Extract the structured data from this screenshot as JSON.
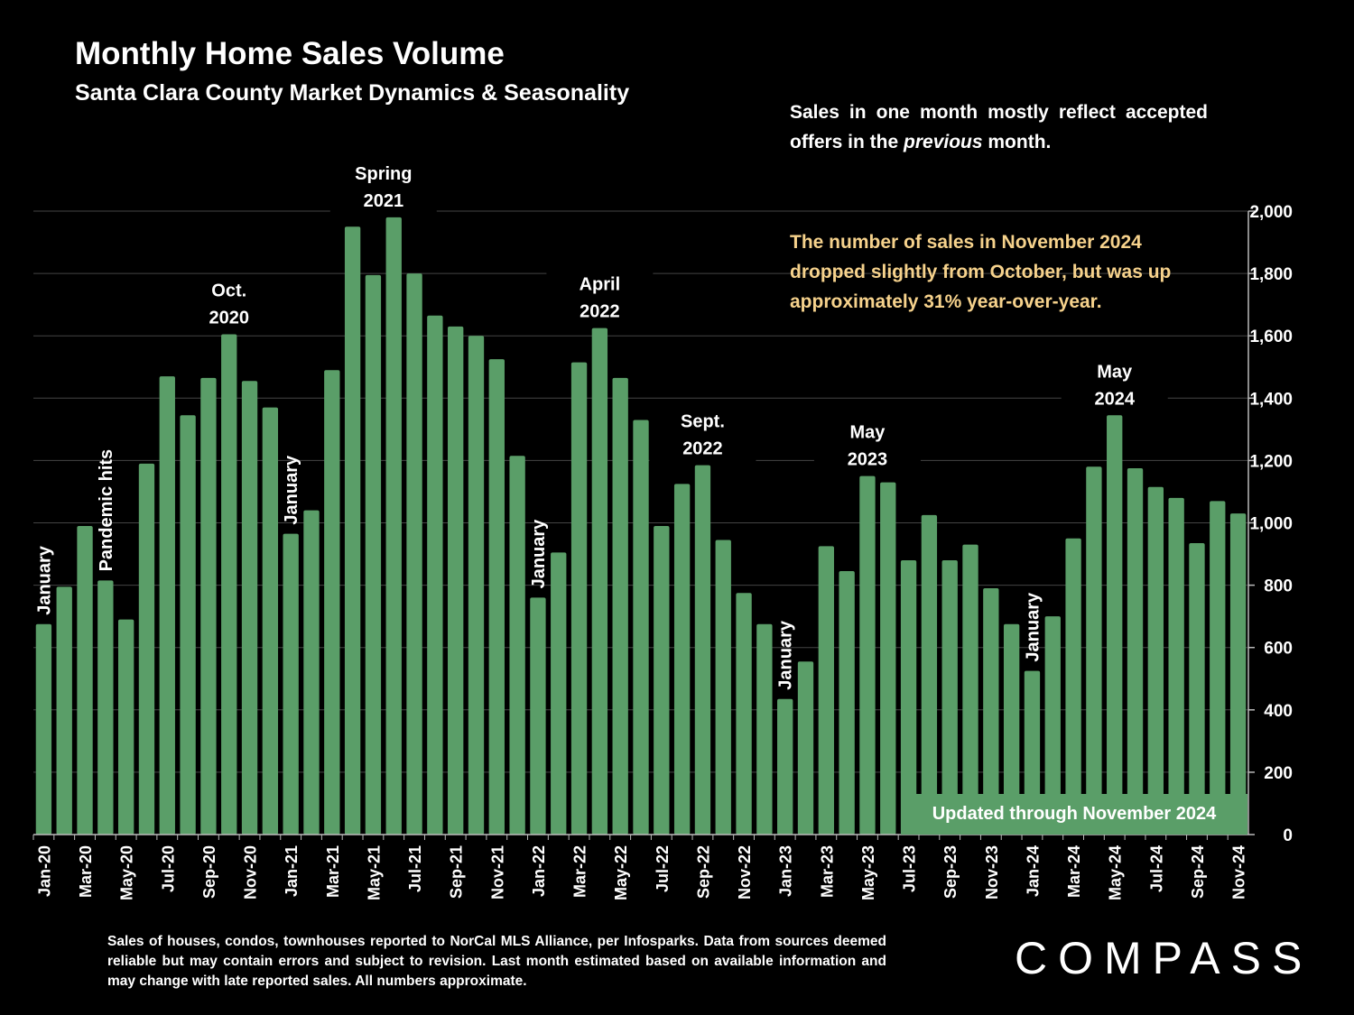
{
  "header": {
    "title": "Monthly Home Sales Volume",
    "subtitle": "Santa Clara County Market Dynamics & Seasonality"
  },
  "notes": {
    "reflect_prefix": "Sales in one month mostly reflect accepted offers in the ",
    "reflect_emphasis": "previous",
    "reflect_suffix": " month.",
    "highlight": "The number of sales in November 2024 dropped slightly from October, but was up approximately 31% year-over-year."
  },
  "update_badge": "Updated through November 2024",
  "footnote": "Sales of houses, condos, townhouses reported to NorCal MLS Alliance, per Infosparks. Data from sources deemed reliable but may contain errors and subject to revision. Last month estimated based on available information and may change with late reported sales. All numbers approximate.",
  "logo": "COMPASS",
  "colors": {
    "bar": "#5a9e68",
    "highlight_text": "#f6d28c",
    "background": "#000000",
    "grid": "#444444"
  },
  "chart_data": {
    "type": "bar",
    "title": "Monthly Home Sales Volume",
    "xlabel": "",
    "ylabel": "",
    "ylim": [
      0,
      2000
    ],
    "yticks": [
      0,
      200,
      400,
      600,
      800,
      1000,
      1200,
      1400,
      1600,
      1800,
      2000
    ],
    "ytick_labels": [
      "0",
      "200",
      "400",
      "600",
      "800",
      "1,000",
      "1,200",
      "1,400",
      "1,600",
      "1,800",
      "2,000"
    ],
    "y_axis_side": "right",
    "grid": true,
    "categories": [
      "Jan-20",
      "Feb-20",
      "Mar-20",
      "Apr-20",
      "May-20",
      "Jun-20",
      "Jul-20",
      "Aug-20",
      "Sep-20",
      "Oct-20",
      "Nov-20",
      "Dec-20",
      "Jan-21",
      "Feb-21",
      "Mar-21",
      "Apr-21",
      "May-21",
      "Jun-21",
      "Jul-21",
      "Aug-21",
      "Sep-21",
      "Oct-21",
      "Nov-21",
      "Dec-21",
      "Jan-22",
      "Feb-22",
      "Mar-22",
      "Apr-22",
      "May-22",
      "Jun-22",
      "Jul-22",
      "Aug-22",
      "Sep-22",
      "Oct-22",
      "Nov-22",
      "Dec-22",
      "Jan-23",
      "Feb-23",
      "Mar-23",
      "Apr-23",
      "May-23",
      "Jun-23",
      "Jul-23",
      "Aug-23",
      "Sep-23",
      "Oct-23",
      "Nov-23",
      "Dec-23",
      "Jan-24",
      "Feb-24",
      "Mar-24",
      "Apr-24",
      "May-24",
      "Jun-24",
      "Jul-24",
      "Aug-24",
      "Sep-24",
      "Oct-24",
      "Nov-24"
    ],
    "visible_tick_labels": [
      "Jan-20",
      "Mar-20",
      "May-20",
      "Jul-20",
      "Sep-20",
      "Nov-20",
      "Jan-21",
      "Mar-21",
      "May-21",
      "Jul-21",
      "Sep-21",
      "Nov-21",
      "Jan-22",
      "Mar-22",
      "May-22",
      "Jul-22",
      "Sep-22",
      "Nov-22",
      "Jan-23",
      "Mar-23",
      "May-23",
      "Jul-23",
      "Sep-23",
      "Nov-23",
      "Jan-24",
      "Mar-24",
      "May-24",
      "Jul-24",
      "Sep-24",
      "Nov-24"
    ],
    "values": [
      675,
      795,
      990,
      815,
      690,
      1190,
      1470,
      1345,
      1465,
      1605,
      1455,
      1370,
      965,
      1040,
      1490,
      1950,
      1795,
      1980,
      1800,
      1665,
      1630,
      1600,
      1525,
      1215,
      760,
      905,
      1515,
      1625,
      1465,
      1330,
      990,
      1125,
      1185,
      945,
      775,
      675,
      435,
      555,
      925,
      845,
      1150,
      1130,
      880,
      1025,
      880,
      930,
      790,
      675,
      525,
      700,
      950,
      1180,
      1345,
      1175,
      1115,
      1080,
      935,
      1070,
      1030
    ],
    "annotations": [
      {
        "index": 0,
        "text": [
          "January"
        ],
        "orientation": "vertical"
      },
      {
        "index": 3,
        "text": [
          "Pandemic hits"
        ],
        "orientation": "vertical"
      },
      {
        "index": 9,
        "text": [
          "Oct.",
          "2020"
        ],
        "orientation": "horizontal"
      },
      {
        "index": 12,
        "text": [
          "January"
        ],
        "orientation": "vertical"
      },
      {
        "index": 17,
        "text": [
          "Spring",
          "2021"
        ],
        "orientation": "horizontal",
        "offset": -0.5
      },
      {
        "index": 24,
        "text": [
          "January"
        ],
        "orientation": "vertical"
      },
      {
        "index": 27,
        "text": [
          "April",
          "2022"
        ],
        "orientation": "horizontal"
      },
      {
        "index": 32,
        "text": [
          "Sept.",
          "2022"
        ],
        "orientation": "horizontal"
      },
      {
        "index": 36,
        "text": [
          "January"
        ],
        "orientation": "vertical"
      },
      {
        "index": 40,
        "text": [
          "May",
          "2023"
        ],
        "orientation": "horizontal"
      },
      {
        "index": 48,
        "text": [
          "January"
        ],
        "orientation": "vertical"
      },
      {
        "index": 52,
        "text": [
          "May",
          "2024"
        ],
        "orientation": "horizontal"
      }
    ]
  }
}
